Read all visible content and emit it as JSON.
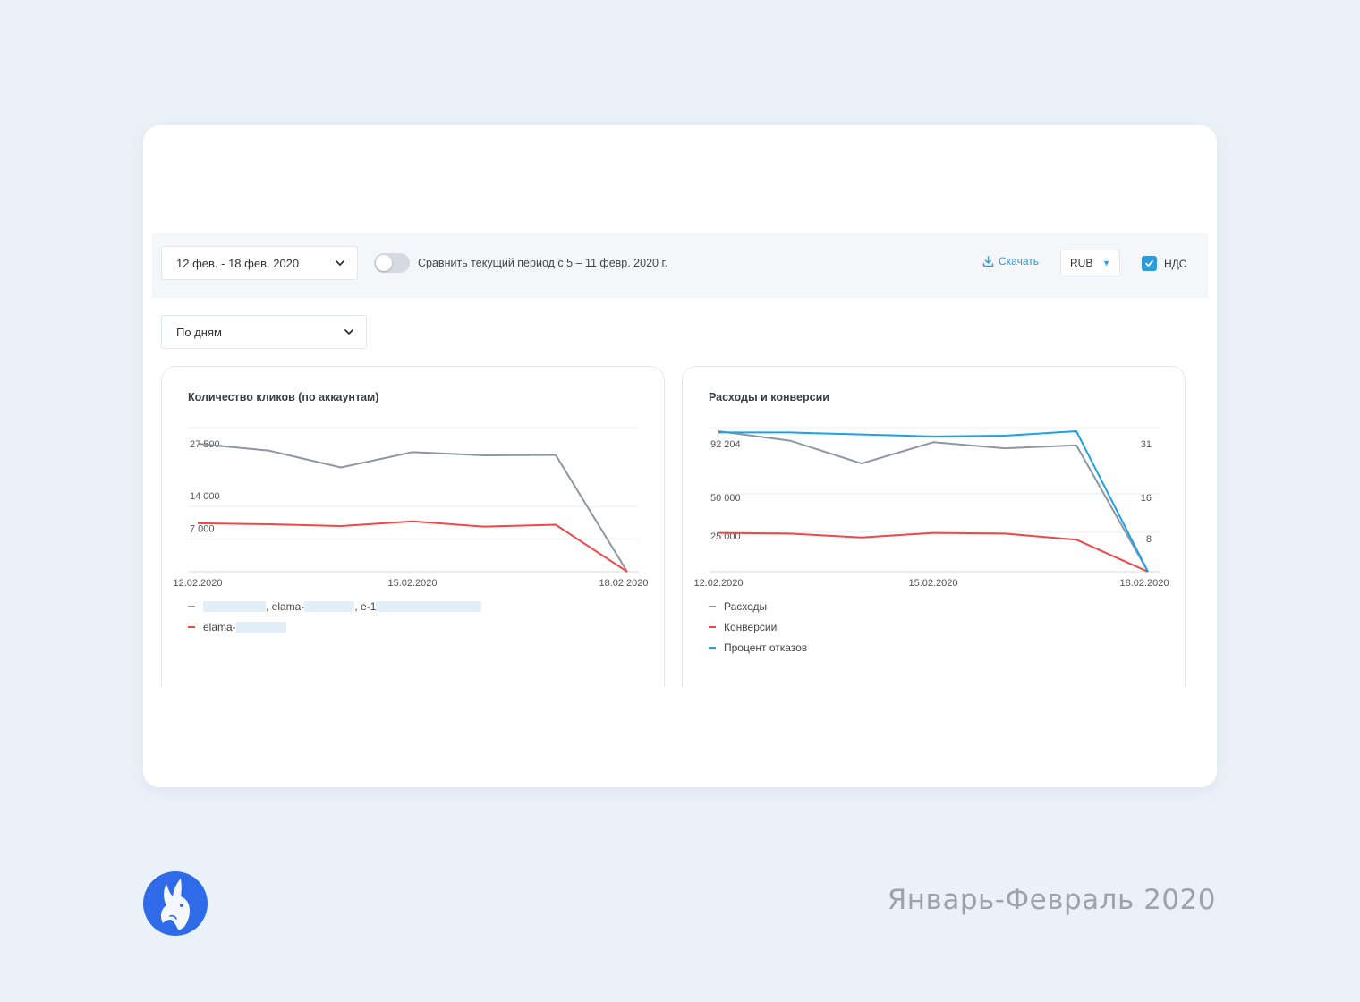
{
  "toolbar": {
    "date_range": "12 фев. - 18 фев. 2020",
    "compare_label": "Сравнить текущий период с 5 – 11 февр. 2020 г.",
    "compare_enabled": false,
    "download_label": "Скачать",
    "currency": "RUB",
    "vat_label": "НДС",
    "vat_checked": true
  },
  "grouping": {
    "value": "По дням"
  },
  "chart_data": [
    {
      "type": "line",
      "title": "Количество кликов (по аккаунтам)",
      "x": [
        "12.02.2020",
        "13.02.2020",
        "14.02.2020",
        "15.02.2020",
        "16.02.2020",
        "17.02.2020",
        "18.02.2020"
      ],
      "x_tick_labels": [
        "12.02.2020",
        "15.02.2020",
        "18.02.2020"
      ],
      "y_tick_labels": [
        "27 500",
        "14 000",
        "7 000"
      ],
      "series": [
        {
          "values": [
            27500,
            26000,
            22400,
            25700,
            25000,
            25100,
            0
          ],
          "color": "#8f96a3"
        },
        {
          "values": [
            10400,
            10200,
            9800,
            10800,
            9700,
            10100,
            0
          ],
          "color": "#f04848"
        }
      ],
      "legend": [
        {
          "parts": [
            "",
            ", elama-",
            ", e-1"
          ],
          "color": "#8f96a3"
        },
        {
          "parts": [
            "elama-"
          ],
          "color": "#f04848"
        }
      ]
    },
    {
      "type": "line",
      "title": "Расходы и конверсии",
      "x": [
        "12.02.2020",
        "13.02.2020",
        "14.02.2020",
        "15.02.2020",
        "16.02.2020",
        "17.02.2020",
        "18.02.2020"
      ],
      "x_tick_labels": [
        "12.02.2020",
        "15.02.2020",
        "18.02.2020"
      ],
      "y_left_tick_labels": [
        "92 204",
        "50 000",
        "25 000"
      ],
      "y_right_tick_labels": [
        "31",
        "16",
        "8"
      ],
      "series": [
        {
          "name": "Расходы",
          "axis": "left",
          "values": [
            92204,
            86000,
            71000,
            85000,
            81000,
            83000,
            0
          ],
          "color": "#8f96a3"
        },
        {
          "name": "Конверсии",
          "axis": "left",
          "values": [
            25500,
            25000,
            22500,
            25500,
            25000,
            21000,
            0
          ],
          "color": "#f04848"
        },
        {
          "name": "Процент отказов",
          "axis": "right",
          "values": [
            34.5,
            34.5,
            34,
            33.5,
            33.7,
            34.8,
            0
          ],
          "color": "#1aa3e8"
        }
      ]
    }
  ],
  "footer": {
    "period": "Январь-Февраль 2020"
  }
}
